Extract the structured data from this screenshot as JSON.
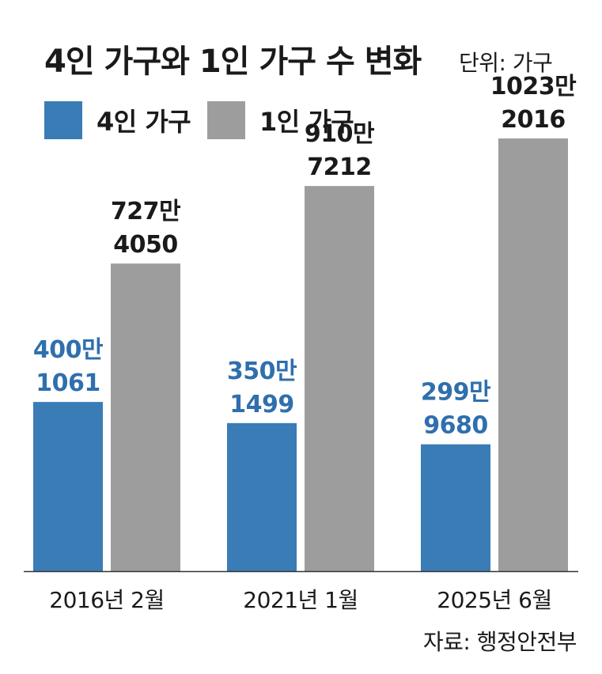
{
  "header": {
    "title": "4인 가구와 1인 가구 수 변화",
    "unit": "단위: 가구"
  },
  "legend": [
    {
      "label": "4인 가구",
      "color": "#3a7cb6"
    },
    {
      "label": "1인 가구",
      "color": "#9d9d9d"
    }
  ],
  "source": "자료: 행정안전부",
  "chart_data": {
    "type": "bar",
    "categories": [
      "2016년 2월",
      "2021년 1월",
      "2025년 6월"
    ],
    "series": [
      {
        "name": "4인 가구",
        "color": "#3a7cb6",
        "values": [
          4001061,
          3501499,
          2999680
        ],
        "labels": [
          [
            "400만",
            "1061"
          ],
          [
            "350만",
            "1499"
          ],
          [
            "299만",
            "9680"
          ]
        ]
      },
      {
        "name": "1인 가구",
        "color": "#9d9d9d",
        "values": [
          7274050,
          9107212,
          10232016
        ],
        "labels": [
          [
            "727만",
            "4050"
          ],
          [
            "910만",
            "7212"
          ],
          [
            "1023만",
            "2016"
          ]
        ]
      }
    ],
    "ylim": [
      0,
      10700000
    ],
    "grid": false,
    "legend_position": "top-left"
  }
}
